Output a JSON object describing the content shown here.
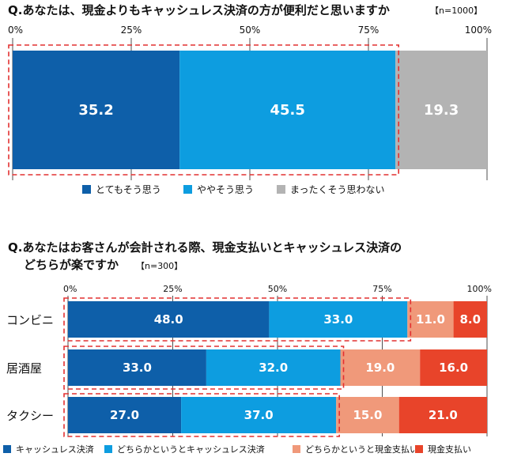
{
  "chart_data": [
    {
      "type": "bar",
      "orientation": "horizontal",
      "stacked": true,
      "title": "Q.あなたは、現金よりもキャッシュレス決済の方が便利だと思いますか",
      "sample": "【n=1000】",
      "xlim": [
        0,
        100
      ],
      "ticks": [
        "0%",
        "25%",
        "50%",
        "75%",
        "100%"
      ],
      "categories": [
        ""
      ],
      "series": [
        {
          "name": "とてもそう思う",
          "color": "#0e5fa9",
          "values": [
            35.2
          ],
          "labels": [
            "35.2"
          ]
        },
        {
          "name": "ややそう思う",
          "color": "#0d9de0",
          "values": [
            45.5
          ],
          "labels": [
            "45.5"
          ]
        },
        {
          "name": "まったくそう思わない",
          "color": "#b3b3b3",
          "values": [
            19.3
          ],
          "labels": [
            "19.3"
          ]
        }
      ],
      "highlight_series": 2,
      "grid": true,
      "legend": "bottom"
    },
    {
      "type": "bar",
      "orientation": "horizontal",
      "stacked": true,
      "title": "Q.あなたはお客さんが会計される際、現金支払いとキャッシュレス決済の",
      "title_line2": "どちらが楽ですか",
      "sample": "【n=300】",
      "xlim": [
        0,
        100
      ],
      "ticks": [
        "0%",
        "25%",
        "50%",
        "75%",
        "100%"
      ],
      "categories": [
        "コンビニ",
        "居酒屋",
        "タクシー"
      ],
      "series": [
        {
          "name": "キャッシュレス決済",
          "color": "#0e5fa9",
          "values": [
            48.0,
            33.0,
            27.0
          ],
          "labels": [
            "48.0",
            "33.0",
            "27.0"
          ]
        },
        {
          "name": "どちらかというとキャッシュレス決済",
          "color": "#0d9de0",
          "values": [
            33.0,
            32.0,
            37.0
          ],
          "labels": [
            "33.0",
            "32.0",
            "37.0"
          ]
        },
        {
          "name": "どちらかというと現金支払い",
          "color": "#f0997a",
          "values": [
            11.0,
            19.0,
            15.0
          ],
          "labels": [
            "11.0",
            "19.0",
            "15.0"
          ]
        },
        {
          "name": "現金支払い",
          "color": "#e8442a",
          "values": [
            8.0,
            16.0,
            21.0
          ],
          "labels": [
            "8.0",
            "16.0",
            "21.0"
          ]
        }
      ],
      "highlight_series": 2,
      "grid": true,
      "legend": "bottom"
    }
  ]
}
